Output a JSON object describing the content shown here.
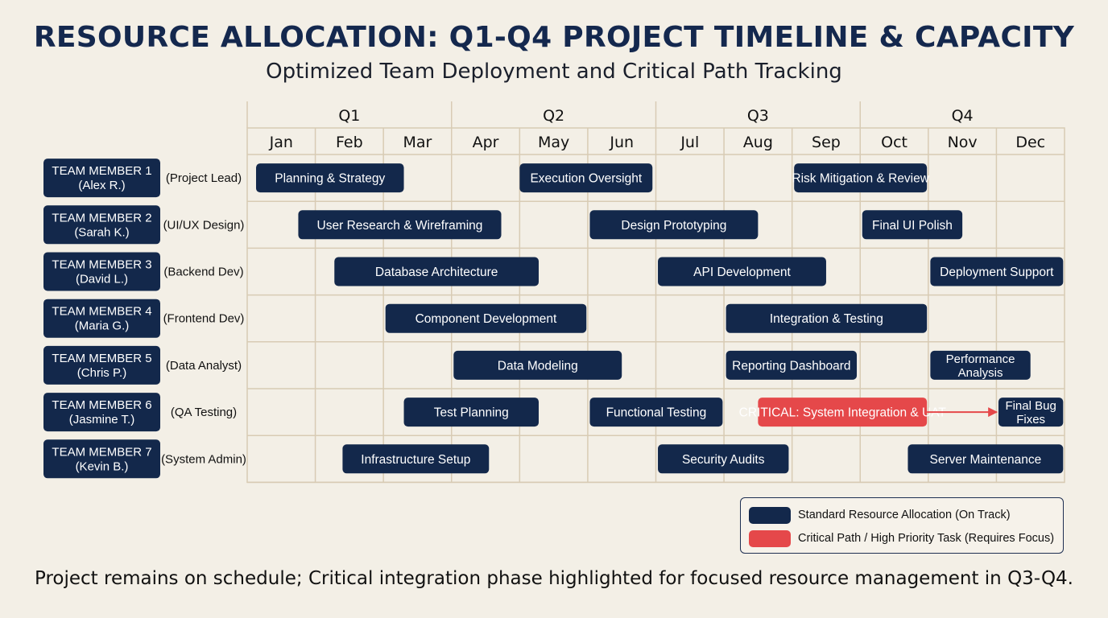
{
  "title": "RESOURCE ALLOCATION: Q1-Q4 PROJECT TIMELINE & CAPACITY",
  "subtitle": "Optimized Team Deployment and Critical Path Tracking",
  "quarters": [
    "Q1",
    "Q2",
    "Q3",
    "Q4"
  ],
  "months": [
    "Jan",
    "Feb",
    "Mar",
    "Apr",
    "May",
    "Jun",
    "Jul",
    "Aug",
    "Sep",
    "Oct",
    "Nov",
    "Dec"
  ],
  "colors": {
    "standard": "#13284b",
    "critical": "#e5484a",
    "grid": "#d8cbb4",
    "background": "#f3efe6"
  },
  "members": [
    {
      "name": "TEAM MEMBER 1",
      "person": "(Alex R.)",
      "role": "(Project Lead)"
    },
    {
      "name": "TEAM MEMBER 2",
      "person": "(Sarah K.)",
      "role": "(UI/UX Design)"
    },
    {
      "name": "TEAM MEMBER 3",
      "person": "(David L.)",
      "role": "(Backend Dev)"
    },
    {
      "name": "TEAM MEMBER 4",
      "person": "(Maria G.)",
      "role": "(Frontend Dev)"
    },
    {
      "name": "TEAM MEMBER 5",
      "person": "(Chris P.)",
      "role": "(Data Analyst)"
    },
    {
      "name": "TEAM MEMBER 6",
      "person": "(Jasmine T.)",
      "role": "(QA Testing)"
    },
    {
      "name": "TEAM MEMBER 7",
      "person": "(Kevin B.)",
      "role": "(System Admin)"
    }
  ],
  "tasks": [
    {
      "row": 0,
      "start": 0.13,
      "end": 2.3,
      "lines": [
        "Planning & Strategy"
      ],
      "critical": false
    },
    {
      "row": 0,
      "start": 4.0,
      "end": 5.95,
      "lines": [
        "Execution Oversight"
      ],
      "critical": false
    },
    {
      "row": 0,
      "start": 8.03,
      "end": 9.98,
      "lines": [
        "Risk Mitigation & Review"
      ],
      "critical": false
    },
    {
      "row": 1,
      "start": 0.75,
      "end": 3.73,
      "lines": [
        "User Research & Wireframing"
      ],
      "critical": false
    },
    {
      "row": 1,
      "start": 5.03,
      "end": 7.5,
      "lines": [
        "Design Prototyping"
      ],
      "critical": false
    },
    {
      "row": 1,
      "start": 9.03,
      "end": 10.5,
      "lines": [
        "Final UI Polish"
      ],
      "critical": false
    },
    {
      "row": 2,
      "start": 1.28,
      "end": 4.28,
      "lines": [
        "Database Architecture"
      ],
      "critical": false
    },
    {
      "row": 2,
      "start": 6.03,
      "end": 8.5,
      "lines": [
        "API Development"
      ],
      "critical": false
    },
    {
      "row": 2,
      "start": 10.03,
      "end": 11.98,
      "lines": [
        "Deployment Support"
      ],
      "critical": false
    },
    {
      "row": 3,
      "start": 2.03,
      "end": 4.98,
      "lines": [
        "Component Development"
      ],
      "critical": false
    },
    {
      "row": 3,
      "start": 7.03,
      "end": 9.98,
      "lines": [
        "Integration & Testing"
      ],
      "critical": false
    },
    {
      "row": 4,
      "start": 3.03,
      "end": 5.5,
      "lines": [
        "Data Modeling"
      ],
      "critical": false
    },
    {
      "row": 4,
      "start": 7.03,
      "end": 8.95,
      "lines": [
        "Reporting Dashboard"
      ],
      "critical": false
    },
    {
      "row": 4,
      "start": 10.03,
      "end": 11.5,
      "lines": [
        "Performance",
        "Analysis"
      ],
      "critical": false
    },
    {
      "row": 5,
      "start": 2.3,
      "end": 4.28,
      "lines": [
        "Test Planning"
      ],
      "critical": false
    },
    {
      "row": 5,
      "start": 5.03,
      "end": 6.98,
      "lines": [
        "Functional Testing"
      ],
      "critical": false
    },
    {
      "row": 5,
      "start": 7.5,
      "end": 9.98,
      "lines": [
        "CRITICAL: System Integration & UAT"
      ],
      "critical": true
    },
    {
      "row": 5,
      "start": 11.03,
      "end": 11.98,
      "lines": [
        "Final Bug",
        "Fixes"
      ],
      "critical": false
    },
    {
      "row": 6,
      "start": 1.4,
      "end": 3.55,
      "lines": [
        "Infrastructure Setup"
      ],
      "critical": false
    },
    {
      "row": 6,
      "start": 6.03,
      "end": 7.95,
      "lines": [
        "Security Audits"
      ],
      "critical": false
    },
    {
      "row": 6,
      "start": 9.7,
      "end": 11.98,
      "lines": [
        "Server Maintenance"
      ],
      "critical": false
    }
  ],
  "dependencies": [
    {
      "row": 5,
      "from": 9.98,
      "to": 11.03,
      "critical": true
    }
  ],
  "legend": [
    {
      "label": "Standard Resource Allocation (On Track)",
      "color": "#13284b"
    },
    {
      "label": "Critical Path / High Priority Task (Requires Focus)",
      "color": "#e5484a"
    }
  ],
  "footer": "Project remains on schedule; Critical integration phase highlighted for focused resource management in Q3-Q4."
}
